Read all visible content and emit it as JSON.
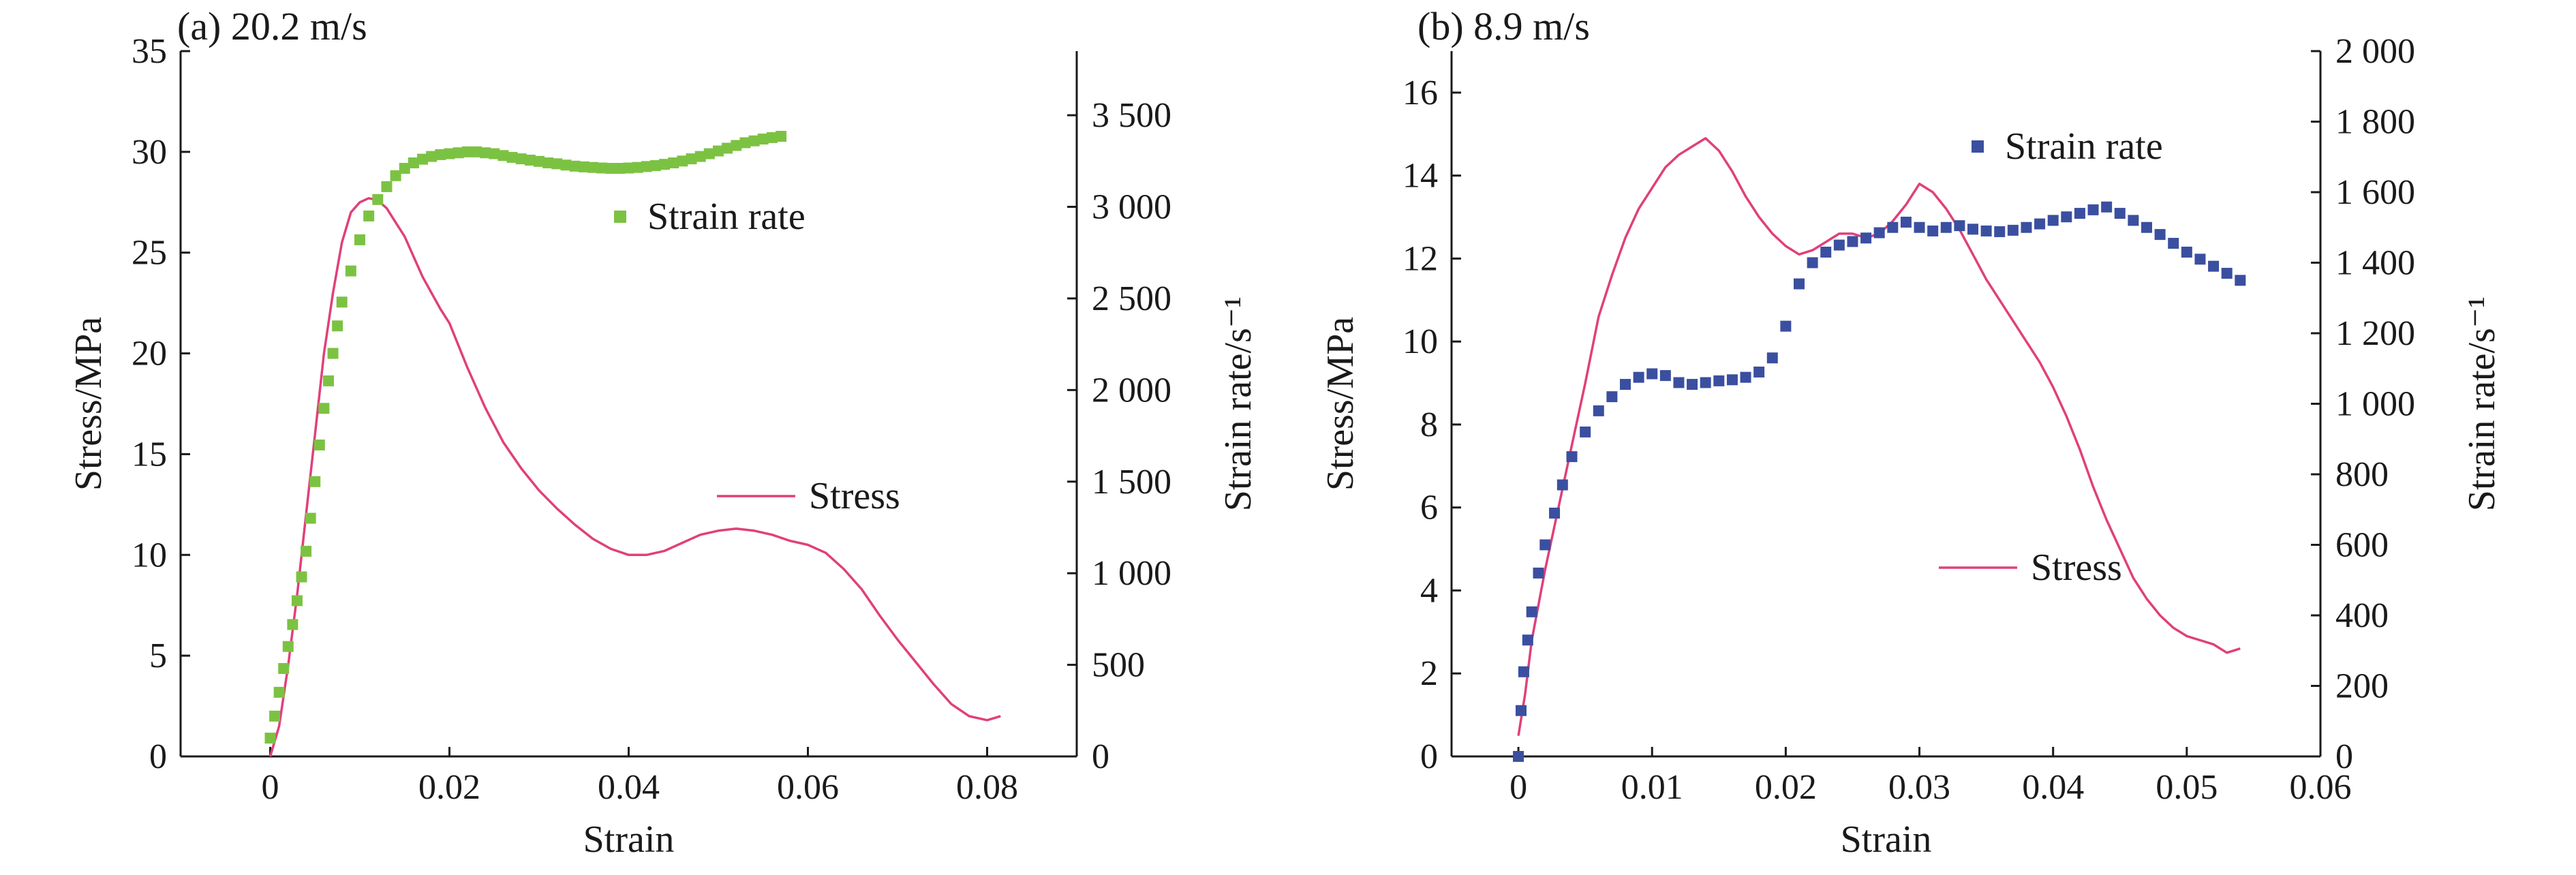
{
  "chart_data": [
    {
      "type": "line",
      "title": "(a) 20.2 m/s",
      "xlabel": "Strain",
      "ylabel": "Stress/MPa",
      "y2label": "Strain rate/s⁻¹",
      "xlim": [
        -0.01,
        0.09
      ],
      "ylim": [
        0,
        35
      ],
      "y2lim": [
        0,
        3850
      ],
      "xticks": [
        0,
        0.02,
        0.04,
        0.06,
        0.08
      ],
      "xtick_labels": [
        "0",
        "0.02",
        "0.04",
        "0.06",
        "0.08"
      ],
      "yticks": [
        0,
        5,
        10,
        15,
        20,
        25,
        30,
        35
      ],
      "ytick_labels": [
        "0",
        "5",
        "10",
        "15",
        "20",
        "25",
        "30",
        "35"
      ],
      "y2ticks": [
        0,
        500,
        1000,
        1500,
        2000,
        2500,
        3000,
        3500
      ],
      "y2tick_labels": [
        "0",
        "500",
        "1 000",
        "1 500",
        "2 000",
        "2 500",
        "3 000",
        "3 500"
      ],
      "colors": {
        "stress": "#e0407a",
        "strain_rate": "#7cc242"
      },
      "series": [
        {
          "name": "Stress",
          "axis": "left",
          "style": "line",
          "x": [
            0.0,
            0.001,
            0.002,
            0.003,
            0.004,
            0.005,
            0.006,
            0.007,
            0.008,
            0.009,
            0.01,
            0.011,
            0.012,
            0.013,
            0.014,
            0.015,
            0.016,
            0.017,
            0.018,
            0.019,
            0.02,
            0.022,
            0.024,
            0.026,
            0.028,
            0.03,
            0.032,
            0.034,
            0.036,
            0.038,
            0.04,
            0.042,
            0.044,
            0.046,
            0.048,
            0.05,
            0.052,
            0.054,
            0.056,
            0.058,
            0.06,
            0.062,
            0.064,
            0.066,
            0.068,
            0.07,
            0.072,
            0.074,
            0.076,
            0.078,
            0.08,
            0.0815
          ],
          "y": [
            0.0,
            1.5,
            4.5,
            8.0,
            12.0,
            16.0,
            20.0,
            23.0,
            25.5,
            27.0,
            27.5,
            27.7,
            27.6,
            27.2,
            26.5,
            25.8,
            24.8,
            23.8,
            23.0,
            22.2,
            21.5,
            19.3,
            17.3,
            15.6,
            14.3,
            13.2,
            12.3,
            11.5,
            10.8,
            10.3,
            10.0,
            10.0,
            10.2,
            10.6,
            11.0,
            11.2,
            11.3,
            11.2,
            11.0,
            10.7,
            10.5,
            10.1,
            9.3,
            8.3,
            7.0,
            5.8,
            4.7,
            3.6,
            2.6,
            2.0,
            1.8,
            2.0
          ]
        },
        {
          "name": "Strain rate",
          "axis": "right",
          "style": "markers",
          "x": [
            0.0,
            0.0005,
            0.001,
            0.0015,
            0.002,
            0.0025,
            0.003,
            0.0035,
            0.004,
            0.0045,
            0.005,
            0.0055,
            0.006,
            0.0065,
            0.007,
            0.0075,
            0.008,
            0.009,
            0.01,
            0.011,
            0.012,
            0.013,
            0.014,
            0.015,
            0.016,
            0.017,
            0.018,
            0.019,
            0.02,
            0.021,
            0.022,
            0.023,
            0.024,
            0.025,
            0.026,
            0.027,
            0.028,
            0.029,
            0.03,
            0.031,
            0.032,
            0.033,
            0.034,
            0.035,
            0.036,
            0.037,
            0.038,
            0.039,
            0.04,
            0.041,
            0.042,
            0.043,
            0.044,
            0.045,
            0.046,
            0.047,
            0.048,
            0.049,
            0.05,
            0.051,
            0.052,
            0.053,
            0.054,
            0.055,
            0.056,
            0.057
          ],
          "y": [
            100,
            220,
            350,
            480,
            600,
            720,
            850,
            980,
            1120,
            1300,
            1500,
            1700,
            1900,
            2050,
            2200,
            2350,
            2480,
            2650,
            2820,
            2950,
            3040,
            3110,
            3170,
            3210,
            3240,
            3260,
            3275,
            3285,
            3290,
            3295,
            3300,
            3300,
            3295,
            3290,
            3280,
            3270,
            3262,
            3255,
            3248,
            3240,
            3235,
            3228,
            3222,
            3218,
            3215,
            3212,
            3210,
            3210,
            3212,
            3215,
            3220,
            3225,
            3232,
            3240,
            3250,
            3262,
            3275,
            3290,
            3305,
            3320,
            3335,
            3350,
            3360,
            3370,
            3378,
            3385
          ]
        }
      ],
      "legend": [
        {
          "label": "Strain rate",
          "style": "marker",
          "color": "#7cc242"
        },
        {
          "label": "Stress",
          "style": "line",
          "color": "#e0407a"
        }
      ]
    },
    {
      "type": "line",
      "title": "(b) 8.9 m/s",
      "xlabel": "Strain",
      "ylabel": "Stress/MPa",
      "y2label": "Strain rate/s⁻¹",
      "xlim": [
        -0.005,
        0.06
      ],
      "ylim": [
        0,
        17
      ],
      "y2lim": [
        0,
        2000
      ],
      "xticks": [
        0,
        0.01,
        0.02,
        0.03,
        0.04,
        0.05,
        0.06
      ],
      "xtick_labels": [
        "0",
        "0.01",
        "0.02",
        "0.03",
        "0.04",
        "0.05",
        "0.06"
      ],
      "yticks": [
        0,
        2,
        4,
        6,
        8,
        10,
        12,
        14,
        16
      ],
      "ytick_labels": [
        "0",
        "2",
        "4",
        "6",
        "8",
        "10",
        "12",
        "14",
        "16"
      ],
      "y2ticks": [
        0,
        200,
        400,
        600,
        800,
        1000,
        1200,
        1400,
        1600,
        1800,
        2000
      ],
      "y2tick_labels": [
        "0",
        "200",
        "400",
        "600",
        "800",
        "1 000",
        "1 200",
        "1 400",
        "1 600",
        "1 800",
        "2 000"
      ],
      "colors": {
        "stress": "#e0407a",
        "strain_rate": "#3b4fa0"
      },
      "series": [
        {
          "name": "Stress",
          "axis": "left",
          "style": "line",
          "x": [
            0.0,
            0.0005,
            0.001,
            0.002,
            0.003,
            0.004,
            0.005,
            0.006,
            0.007,
            0.008,
            0.009,
            0.01,
            0.011,
            0.012,
            0.013,
            0.014,
            0.015,
            0.016,
            0.017,
            0.018,
            0.019,
            0.02,
            0.021,
            0.022,
            0.023,
            0.024,
            0.025,
            0.026,
            0.027,
            0.028,
            0.029,
            0.03,
            0.031,
            0.032,
            0.033,
            0.034,
            0.035,
            0.036,
            0.037,
            0.038,
            0.039,
            0.04,
            0.041,
            0.042,
            0.043,
            0.044,
            0.045,
            0.046,
            0.047,
            0.048,
            0.049,
            0.05,
            0.051,
            0.052,
            0.053,
            0.054
          ],
          "y": [
            0.5,
            1.5,
            2.8,
            4.5,
            6.0,
            7.5,
            9.0,
            10.6,
            11.6,
            12.5,
            13.2,
            13.7,
            14.2,
            14.5,
            14.7,
            14.9,
            14.6,
            14.1,
            13.5,
            13.0,
            12.6,
            12.3,
            12.1,
            12.2,
            12.4,
            12.6,
            12.6,
            12.5,
            12.6,
            12.9,
            13.3,
            13.8,
            13.6,
            13.2,
            12.7,
            12.1,
            11.5,
            11.0,
            10.5,
            10.0,
            9.5,
            8.9,
            8.2,
            7.4,
            6.5,
            5.7,
            5.0,
            4.3,
            3.8,
            3.4,
            3.1,
            2.9,
            2.8,
            2.7,
            2.5,
            2.6
          ]
        },
        {
          "name": "Strain rate",
          "axis": "right",
          "style": "markers",
          "x": [
            0.0,
            0.0002,
            0.0004,
            0.0007,
            0.001,
            0.0015,
            0.002,
            0.0027,
            0.0033,
            0.004,
            0.005,
            0.006,
            0.007,
            0.008,
            0.009,
            0.01,
            0.011,
            0.012,
            0.013,
            0.014,
            0.015,
            0.016,
            0.017,
            0.018,
            0.019,
            0.02,
            0.021,
            0.022,
            0.023,
            0.024,
            0.025,
            0.026,
            0.027,
            0.028,
            0.029,
            0.03,
            0.031,
            0.032,
            0.033,
            0.034,
            0.035,
            0.036,
            0.037,
            0.038,
            0.039,
            0.04,
            0.041,
            0.042,
            0.043,
            0.044,
            0.045,
            0.046,
            0.047,
            0.048,
            0.049,
            0.05,
            0.051,
            0.052,
            0.053,
            0.054
          ],
          "y": [
            0,
            130,
            240,
            330,
            410,
            520,
            600,
            690,
            770,
            850,
            920,
            980,
            1020,
            1055,
            1075,
            1085,
            1080,
            1060,
            1055,
            1060,
            1065,
            1068,
            1075,
            1090,
            1130,
            1220,
            1340,
            1400,
            1430,
            1450,
            1460,
            1470,
            1485,
            1500,
            1515,
            1500,
            1490,
            1500,
            1505,
            1495,
            1490,
            1488,
            1492,
            1500,
            1510,
            1520,
            1530,
            1540,
            1550,
            1558,
            1540,
            1520,
            1500,
            1480,
            1455,
            1430,
            1410,
            1390,
            1370,
            1350
          ]
        }
      ],
      "legend": [
        {
          "label": "Strain rate",
          "style": "marker",
          "color": "#3b4fa0"
        },
        {
          "label": "Stress",
          "style": "line",
          "color": "#e0407a"
        }
      ]
    }
  ]
}
